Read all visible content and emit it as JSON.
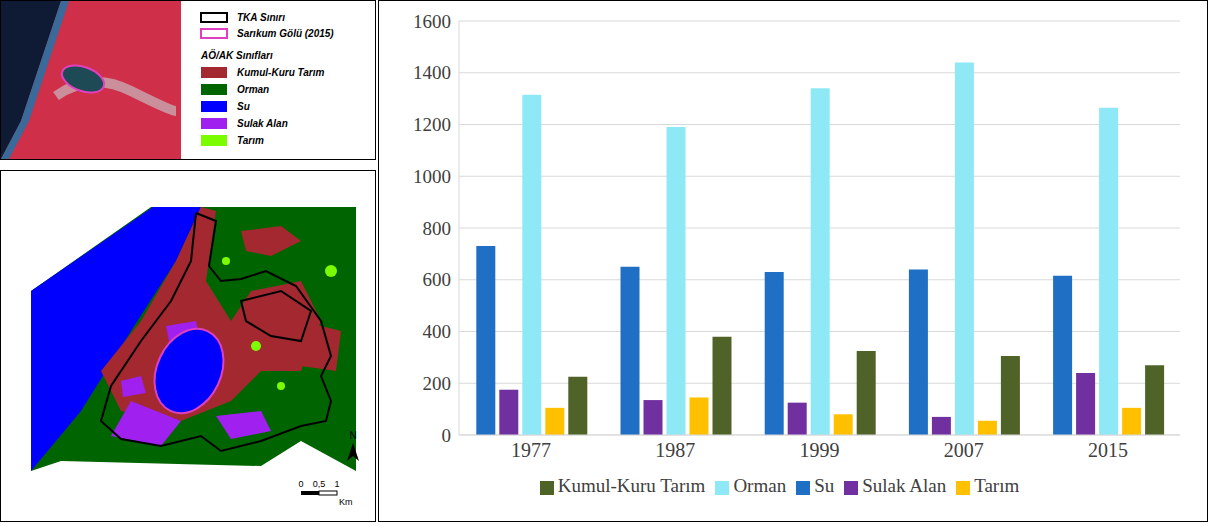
{
  "chart_data": {
    "type": "bar",
    "categories": [
      "1977",
      "1987",
      "1999",
      "2007",
      "2015"
    ],
    "series": [
      {
        "name": "Su",
        "color": "#1f6fc5",
        "values": [
          730,
          650,
          630,
          640,
          615
        ]
      },
      {
        "name": "Sulak Alan",
        "color": "#7030a0",
        "values": [
          175,
          135,
          125,
          70,
          240
        ]
      },
      {
        "name": "Orman",
        "color": "#8ee8f5",
        "values": [
          1315,
          1190,
          1340,
          1440,
          1265
        ]
      },
      {
        "name": "Tarım",
        "color": "#ffc000",
        "values": [
          105,
          145,
          80,
          55,
          105
        ]
      },
      {
        "name": "Kumul-Kuru Tarım",
        "color": "#4f6228",
        "values": [
          225,
          380,
          325,
          305,
          270
        ]
      }
    ],
    "ylim": [
      0,
      1600
    ],
    "yticks": [
      0,
      200,
      400,
      600,
      800,
      1000,
      1200,
      1400,
      1600
    ],
    "grid": true,
    "legend": "bottom"
  },
  "image_panel": {
    "boundaries": [
      {
        "label": "TKA Sınırı",
        "color": "#000000"
      },
      {
        "label": "Sarıkum Gölü (2015)",
        "color": "#e040c0"
      }
    ],
    "classes_title": "AÖ/AK Sınıfları",
    "classes": [
      {
        "label": "Kumul-Kuru Tarım",
        "color": "#a3282f"
      },
      {
        "label": "Orman",
        "color": "#006400"
      },
      {
        "label": "Su",
        "color": "#0000ff"
      },
      {
        "label": "Sulak Alan",
        "color": "#a020f0"
      },
      {
        "label": "Tarım",
        "color": "#7cfc00"
      }
    ]
  },
  "map_panel": {
    "north": "N",
    "scale_labels": [
      "0",
      "0,5",
      "1"
    ],
    "scale_unit": "Km"
  }
}
